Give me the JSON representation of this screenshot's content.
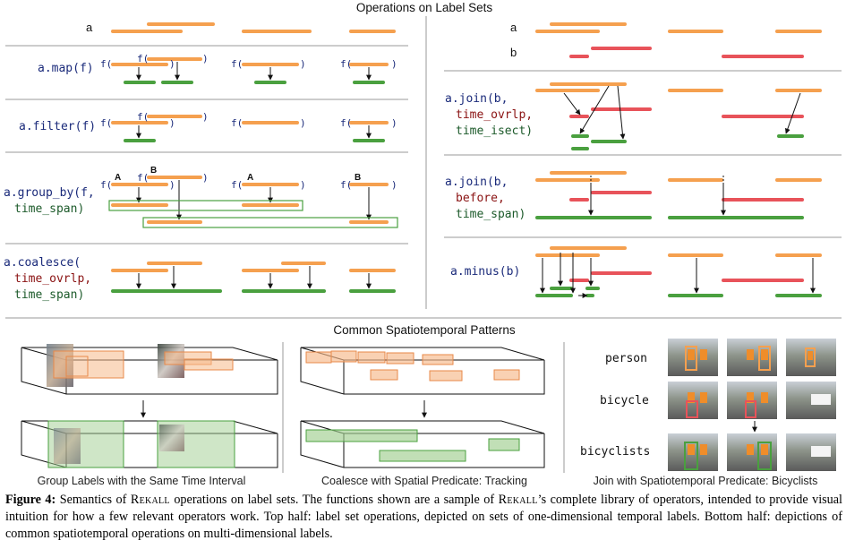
{
  "title_ops": "Operations on Label Sets",
  "title_patterns": "Common Spatiotemporal Patterns",
  "left_rows": [
    {
      "id": "a",
      "parts": [
        {
          "t": "a",
          "c": "lbl"
        }
      ]
    },
    {
      "id": "map",
      "parts": [
        {
          "t": "a.map(f)",
          "c": "code"
        }
      ]
    },
    {
      "id": "filter",
      "parts": [
        {
          "t": "a.filter(f)",
          "c": "code"
        }
      ]
    },
    {
      "id": "group_by",
      "parts": [
        {
          "t": "a.group_by(f,",
          "c": "code"
        },
        {
          "t": "time_span)",
          "c": "codegreen"
        }
      ]
    },
    {
      "id": "coalesce",
      "parts": [
        {
          "t": "a.coalesce(",
          "c": "code"
        },
        {
          "t": "time_ovrlp,",
          "c": "codered"
        },
        {
          "t": "time_span)",
          "c": "codegreen"
        }
      ]
    }
  ],
  "right_rows": [
    {
      "id": "a",
      "parts": [
        {
          "t": "a",
          "c": "lbl"
        }
      ]
    },
    {
      "id": "b",
      "parts": [
        {
          "t": "b",
          "c": "lbl"
        }
      ]
    },
    {
      "id": "join1",
      "parts": [
        {
          "t": "a.join(b,",
          "c": "code"
        },
        {
          "t": "time_ovrlp,",
          "c": "codered"
        },
        {
          "t": "time_isect)",
          "c": "codegreen"
        }
      ]
    },
    {
      "id": "join2",
      "parts": [
        {
          "t": "a.join(b,",
          "c": "code"
        },
        {
          "t": "before,",
          "c": "codered"
        },
        {
          "t": "time_span)",
          "c": "codegreen"
        }
      ]
    },
    {
      "id": "minus",
      "parts": [
        {
          "t": "a.minus(b)",
          "c": "code"
        }
      ]
    }
  ],
  "fn": {
    "open": "f(",
    "close": ")",
    "group_a": "A",
    "group_b": "B"
  },
  "patterns": [
    {
      "caption": "Group Labels with the Same Time Interval"
    },
    {
      "caption": "Coalesce with Spatial Predicate: Tracking"
    },
    {
      "caption": "Join with Spatiotemporal Predicate: Bicyclists"
    }
  ],
  "join_labels": [
    "person",
    "bicycle",
    "bicyclists"
  ],
  "caption": {
    "figure_label": "Figure 4:",
    "system_name": "Rekall",
    "segments": [
      " Semantics of ",
      " operations on label sets.  The functions shown are a sample of ",
      "’s complete library of operators, intended to provide visual intuition for how a few relevant operators work. Top half: label set operations, depicted on sets of one-dimensional temporal labels. Bottom half: depictions of common spatiotemporal operations on multi-dimensional labels."
    ]
  },
  "colors": {
    "orange": "#f5a04f",
    "red": "#e8535a",
    "green": "#4aa03f",
    "divider": "#9a9a9a",
    "box_orange": "#f6b98a",
    "box_green": "#9fce8f"
  }
}
